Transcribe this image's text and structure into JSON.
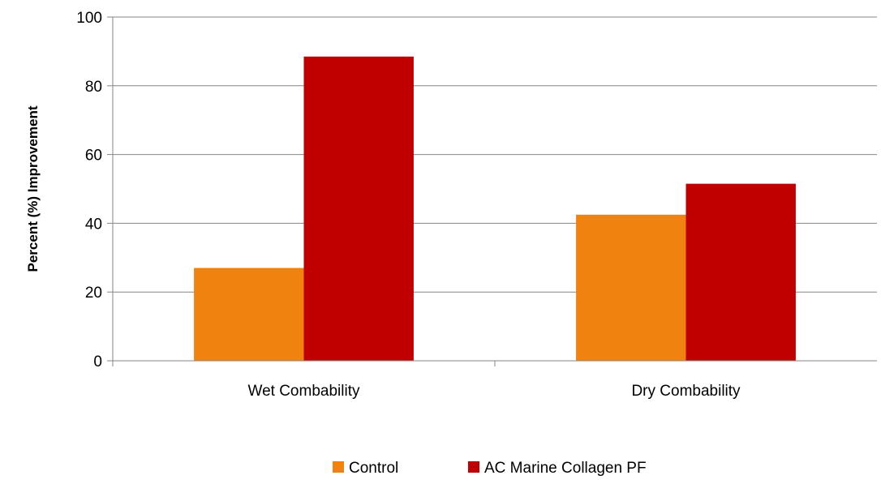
{
  "chart_data": {
    "type": "bar",
    "title": "",
    "xlabel": "",
    "ylabel": "Percent (%) Improvement",
    "ylim": [
      0,
      100
    ],
    "yticks": [
      0,
      20,
      40,
      60,
      80,
      100
    ],
    "categories": [
      "Wet Combability",
      "Dry Combability"
    ],
    "series": [
      {
        "name": "Control",
        "values": [
          27,
          42.5
        ],
        "color": "#F0820F"
      },
      {
        "name": "AC Marine Collagen PF",
        "values": [
          88.5,
          51.5
        ],
        "color": "#C00000"
      }
    ],
    "grid": true,
    "gridline_color": "#868686",
    "axis_color": "#868686",
    "legend_position": "bottom"
  }
}
